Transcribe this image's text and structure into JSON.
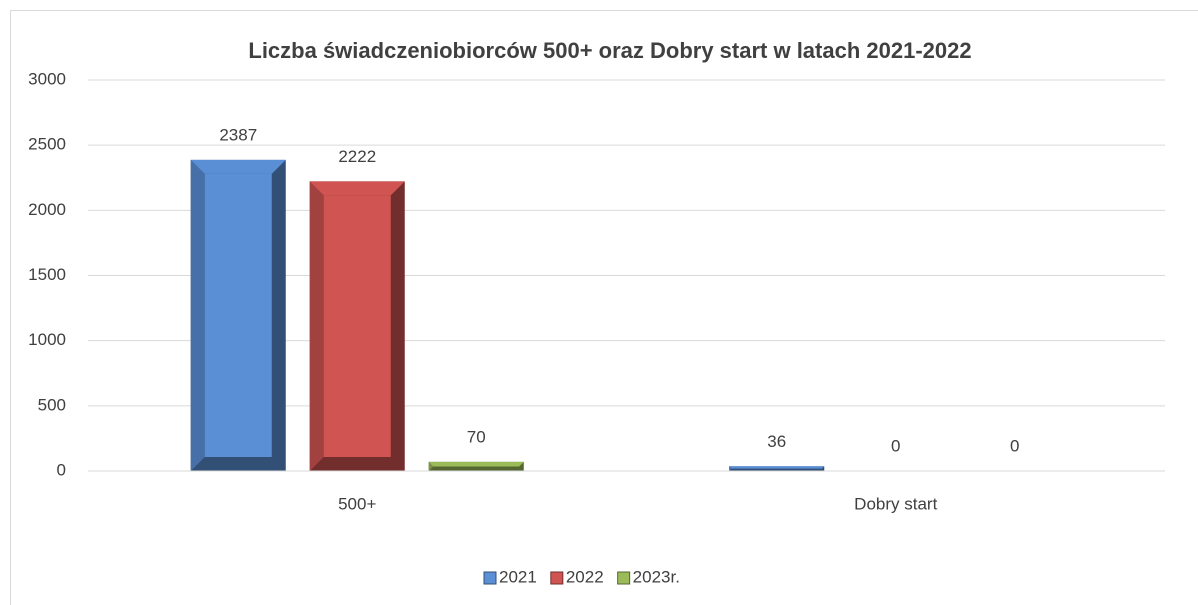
{
  "chart_data": {
    "type": "bar",
    "title": "Liczba świadczeniobiorców 500+ oraz Dobry start w latach 2021-2022",
    "categories": [
      "500+",
      "Dobry start"
    ],
    "series": [
      {
        "name": "2021",
        "color": "#5a8fd6",
        "values": [
          2387,
          36
        ]
      },
      {
        "name": "2022",
        "color": "#d05452",
        "values": [
          2222,
          0
        ]
      },
      {
        "name": "2023r.",
        "color": "#9bbb59",
        "values": [
          70,
          0
        ]
      }
    ],
    "ylim": [
      0,
      3000
    ],
    "yticks": [
      0,
      500,
      1000,
      1500,
      2000,
      2500,
      3000
    ],
    "grid": true,
    "legend": "bottom"
  }
}
